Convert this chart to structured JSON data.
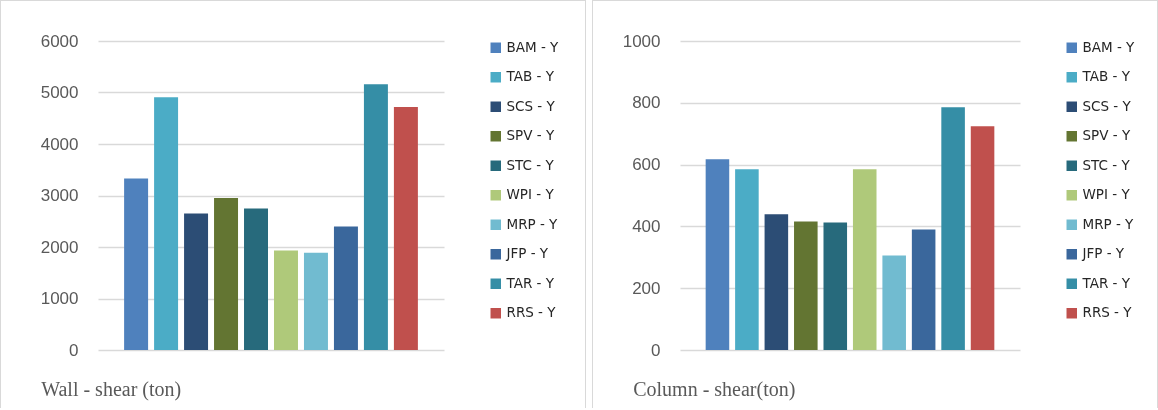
{
  "chart_data": [
    {
      "type": "bar",
      "title": "Wall - shear (ton)",
      "categories": [
        null
      ],
      "series": [
        {
          "name": "BAM - Y",
          "color": "#4f81bd",
          "values": [
            3330
          ]
        },
        {
          "name": "TAB - Y",
          "color": "#4bacc6",
          "values": [
            4910
          ]
        },
        {
          "name": "SCS - Y",
          "color": "#2c4d75",
          "values": [
            2650
          ]
        },
        {
          "name": "SPV - Y",
          "color": "#637532",
          "values": [
            2950
          ]
        },
        {
          "name": "STC - Y",
          "color": "#276a7c",
          "values": [
            2750
          ]
        },
        {
          "name": "WPI - Y",
          "color": "#afc97a",
          "values": [
            1930
          ]
        },
        {
          "name": "MRP - Y",
          "color": "#71bbd0",
          "values": [
            1890
          ]
        },
        {
          "name": "JFP - Y",
          "color": "#3a679c",
          "values": [
            2400
          ]
        },
        {
          "name": "TAR - Y",
          "color": "#358ea6",
          "values": [
            5160
          ]
        },
        {
          "name": "RRS - Y",
          "color": "#c0504d",
          "values": [
            4720
          ]
        }
      ],
      "ylim": [
        0,
        6000
      ],
      "yticks": [
        0,
        1000,
        2000,
        3000,
        4000,
        5000,
        6000
      ],
      "grid": "y",
      "legend": "right",
      "tick_labels": "y"
    },
    {
      "type": "bar",
      "title": "Column - shear(ton)",
      "categories": [
        null
      ],
      "series": [
        {
          "name": "BAM - Y",
          "color": "#4f81bd",
          "values": [
            617
          ]
        },
        {
          "name": "TAB - Y",
          "color": "#4bacc6",
          "values": [
            585
          ]
        },
        {
          "name": "SCS - Y",
          "color": "#2c4d75",
          "values": [
            439
          ]
        },
        {
          "name": "SPV - Y",
          "color": "#637532",
          "values": [
            416
          ]
        },
        {
          "name": "STC - Y",
          "color": "#276a7c",
          "values": [
            413
          ]
        },
        {
          "name": "WPI - Y",
          "color": "#afc97a",
          "values": [
            585
          ]
        },
        {
          "name": "MRP - Y",
          "color": "#71bbd0",
          "values": [
            306
          ]
        },
        {
          "name": "JFP - Y",
          "color": "#3a679c",
          "values": [
            390
          ]
        },
        {
          "name": "TAR - Y",
          "color": "#358ea6",
          "values": [
            786
          ]
        },
        {
          "name": "RRS - Y",
          "color": "#c0504d",
          "values": [
            724
          ]
        }
      ],
      "ylim": [
        0,
        1000
      ],
      "yticks": [
        0,
        200,
        400,
        600,
        800,
        1000
      ],
      "grid": "y",
      "legend": "right",
      "tick_labels": "y"
    }
  ]
}
